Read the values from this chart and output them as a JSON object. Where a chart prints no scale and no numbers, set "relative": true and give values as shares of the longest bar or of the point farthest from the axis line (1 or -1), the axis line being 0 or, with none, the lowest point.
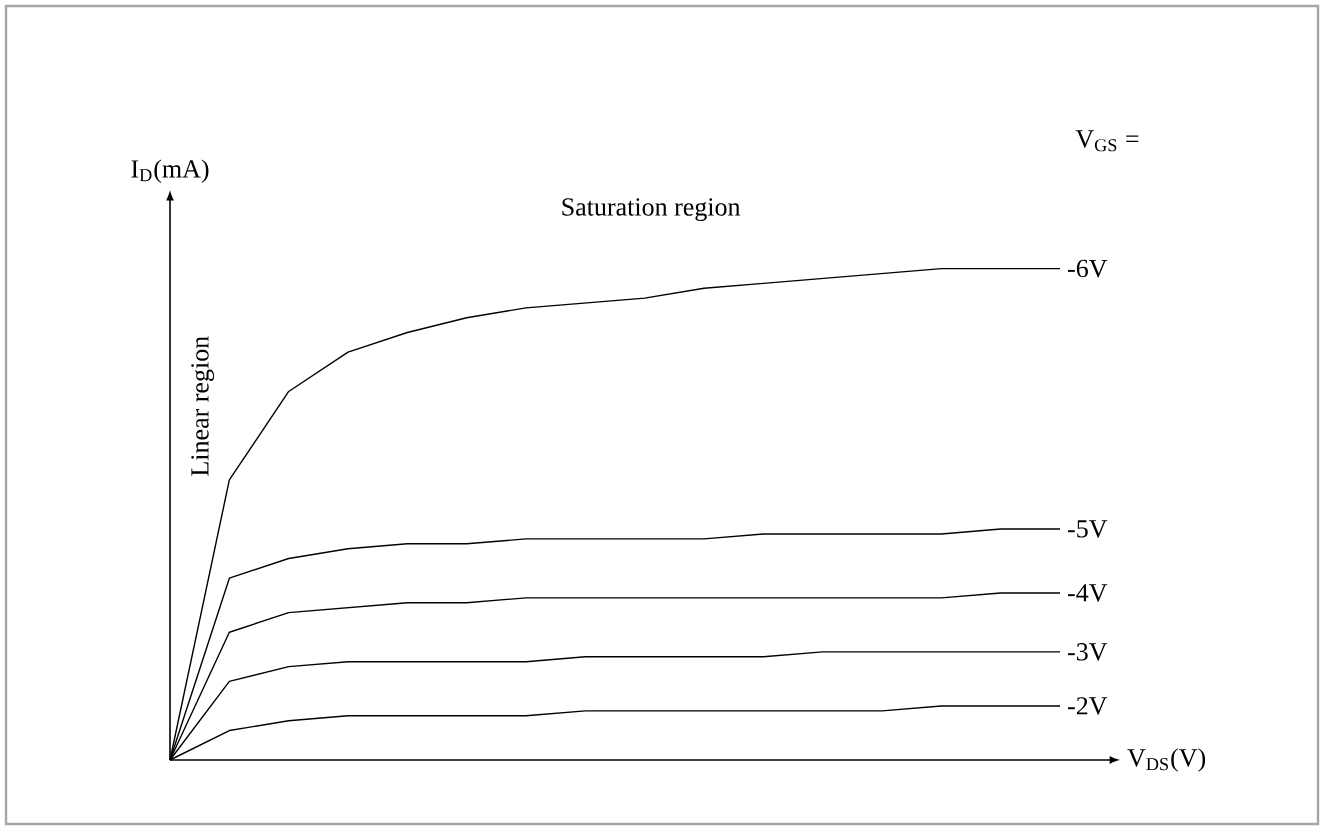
{
  "chart_data": {
    "type": "line",
    "relative": true,
    "xlabel": "V$_{DS}$(V)",
    "ylabel": "I$_{D}$(mA)",
    "marker": "none",
    "line_style": "solid",
    "categories": [
      null,
      null,
      null,
      null,
      null,
      null,
      null,
      null,
      null,
      null,
      null,
      null,
      null,
      null,
      null,
      null
    ],
    "annotations": [
      "Linear region",
      "Saturation region",
      "V$_{GS}$ ="
    ],
    "series": [
      {
        "name": "-6V",
        "color": "#000000",
        "values": [
          0,
          0.57,
          0.75,
          0.83,
          0.87,
          0.9,
          0.92,
          0.93,
          0.94,
          0.96,
          0.97,
          0.98,
          0.99,
          1.0,
          1.0,
          1.0
        ]
      },
      {
        "name": "-5V",
        "color": "#000000",
        "values": [
          0,
          0.37,
          0.41,
          0.43,
          0.44,
          0.44,
          0.45,
          0.45,
          0.45,
          0.45,
          0.46,
          0.46,
          0.46,
          0.46,
          0.47,
          0.47
        ]
      },
      {
        "name": "-4V",
        "color": "#000000",
        "values": [
          0,
          0.26,
          0.3,
          0.31,
          0.32,
          0.32,
          0.33,
          0.33,
          0.33,
          0.33,
          0.33,
          0.33,
          0.33,
          0.33,
          0.34,
          0.34
        ]
      },
      {
        "name": "-3V",
        "color": "#000000",
        "values": [
          0,
          0.16,
          0.19,
          0.2,
          0.2,
          0.2,
          0.2,
          0.21,
          0.21,
          0.21,
          0.21,
          0.22,
          0.22,
          0.22,
          0.22,
          0.22
        ]
      },
      {
        "name": "-2V",
        "color": "#000000",
        "values": [
          0,
          0.06,
          0.08,
          0.09,
          0.09,
          0.09,
          0.09,
          0.1,
          0.1,
          0.1,
          0.1,
          0.1,
          0.1,
          0.11,
          0.11,
          0.11
        ]
      }
    ]
  }
}
